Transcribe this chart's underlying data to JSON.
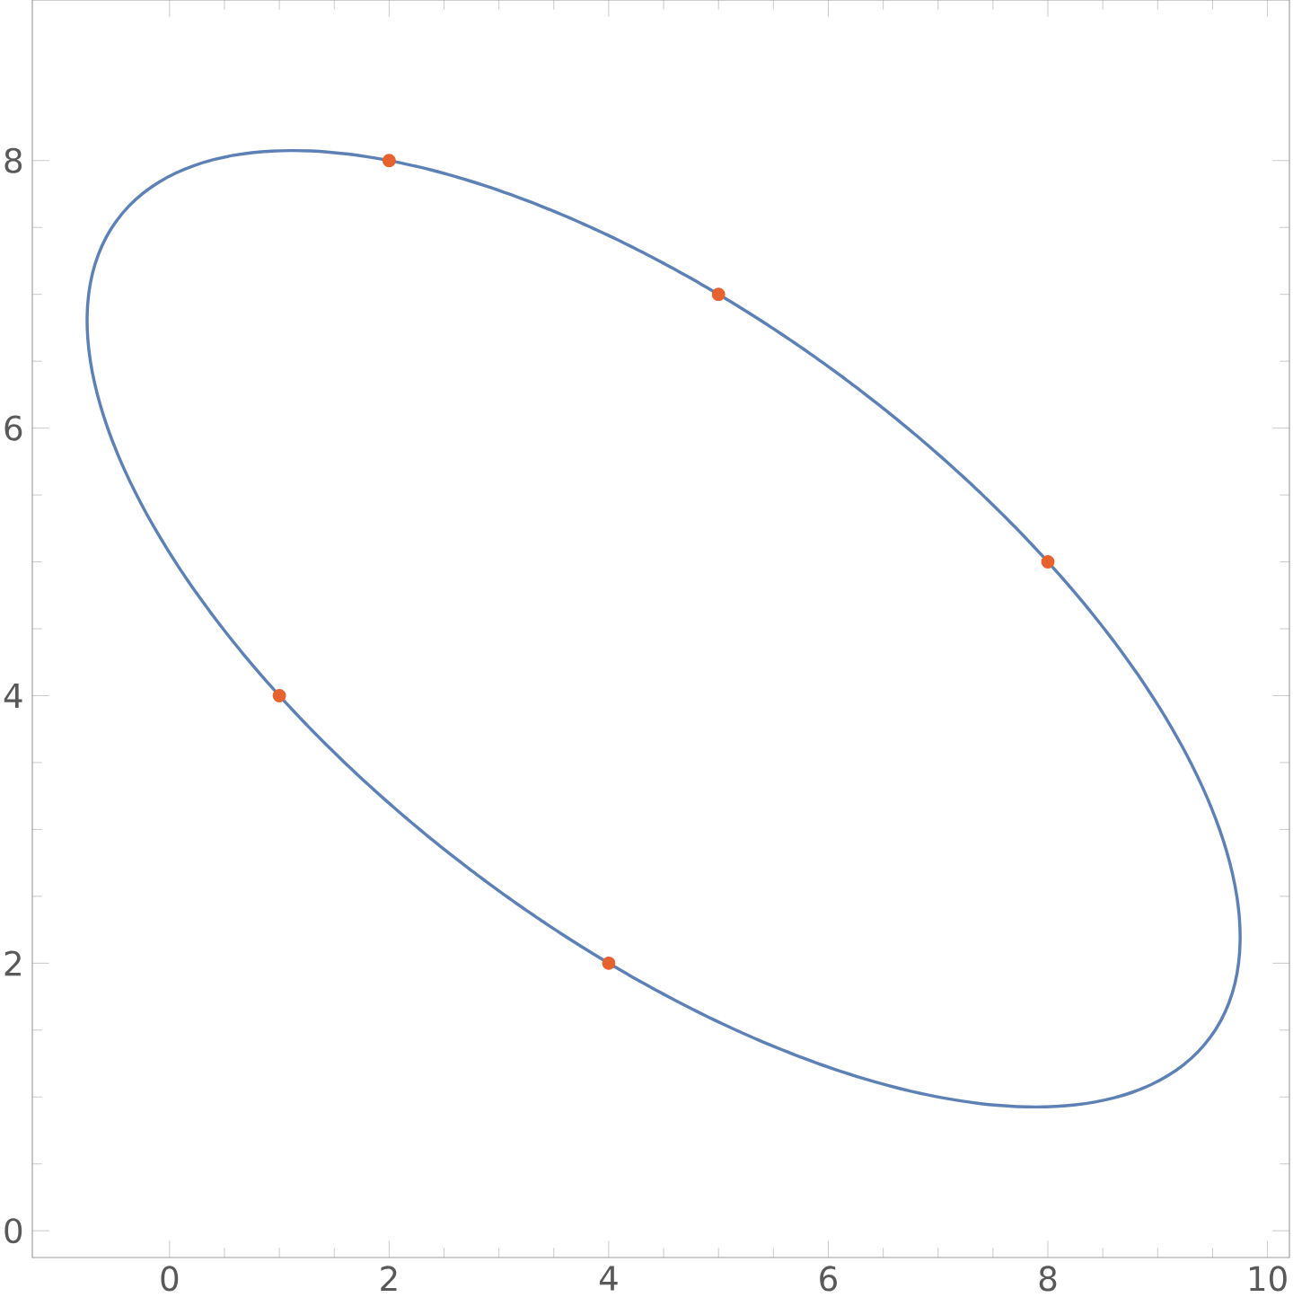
{
  "chart_data": {
    "type": "scatter",
    "xlim": [
      -1.25,
      10.2
    ],
    "ylim": [
      -0.2,
      9.2
    ],
    "xticks": [
      0,
      2,
      4,
      6,
      8,
      10
    ],
    "yticks": [
      0,
      2,
      4,
      6,
      8
    ],
    "grid": false,
    "series": [
      {
        "color": "#e6622e",
        "marker": "circle",
        "x": [
          1,
          2,
          4,
          5,
          8
        ],
        "values": [
          4,
          8,
          2,
          7,
          5
        ]
      }
    ]
  }
}
